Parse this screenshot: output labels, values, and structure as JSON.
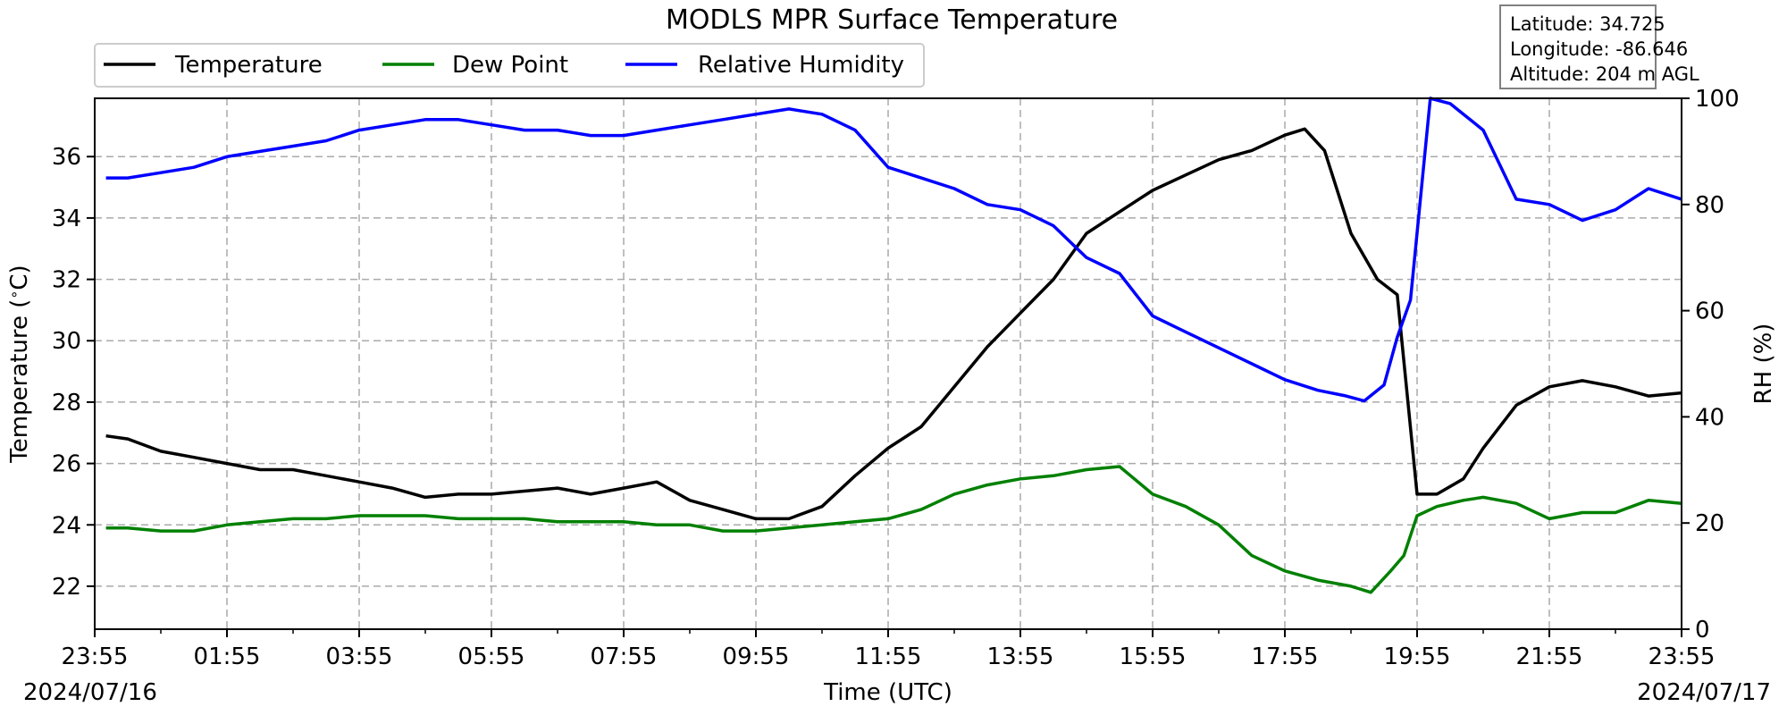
{
  "chart_data": {
    "type": "line",
    "title": "MODLS MPR Surface Temperature",
    "xlabel": "Time (UTC)",
    "ylabel_left": "Temperature ($^\\circ$C)",
    "ylabel_right": "RH (%)",
    "x_ticks": [
      "23:55",
      "01:55",
      "03:55",
      "05:55",
      "07:55",
      "09:55",
      "11:55",
      "13:55",
      "15:55",
      "17:55",
      "19:55",
      "21:55",
      "23:55"
    ],
    "start_date": "2024/07/16",
    "end_date": "2024/07/17",
    "xlim_hours": [
      0,
      24
    ],
    "ylim_left": [
      20.6,
      37.9
    ],
    "ylim_right": [
      0,
      100
    ],
    "yticks_left": [
      22,
      24,
      26,
      28,
      30,
      32,
      34,
      36
    ],
    "yticks_right": [
      0,
      20,
      40,
      60,
      80,
      100
    ],
    "grid": true,
    "legend_position": "top-left",
    "series": [
      {
        "name": "Temperature",
        "axis": "left",
        "color": "#000000",
        "x": [
          0.17,
          0.5,
          1,
          1.5,
          2,
          2.5,
          3,
          3.5,
          4,
          4.5,
          5,
          5.5,
          6,
          6.5,
          7,
          7.5,
          8,
          8.5,
          9,
          9.5,
          10,
          10.5,
          11,
          11.5,
          12,
          12.5,
          13,
          13.5,
          14,
          14.5,
          15,
          15.5,
          16,
          16.5,
          17,
          17.5,
          18,
          18.3,
          18.6,
          19,
          19.4,
          19.7,
          20,
          20.3,
          20.7,
          21,
          21.5,
          22,
          22.5,
          23,
          23.5,
          24
        ],
        "y": [
          26.9,
          26.8,
          26.4,
          26.2,
          26.0,
          25.8,
          25.8,
          25.6,
          25.4,
          25.2,
          24.9,
          25.0,
          25.0,
          25.1,
          25.2,
          25.0,
          25.2,
          25.4,
          24.8,
          24.5,
          24.2,
          24.2,
          24.6,
          25.6,
          26.5,
          27.2,
          28.5,
          29.8,
          30.9,
          32.0,
          33.5,
          34.2,
          34.9,
          35.4,
          35.9,
          36.2,
          36.7,
          36.9,
          36.2,
          33.5,
          32.0,
          31.5,
          25.0,
          25.0,
          25.5,
          26.5,
          27.9,
          28.5,
          28.7,
          28.5,
          28.2,
          28.3
        ]
      },
      {
        "name": "Dew Point",
        "axis": "left",
        "color": "#008000",
        "x": [
          0.17,
          0.5,
          1,
          1.5,
          2,
          2.5,
          3,
          3.5,
          4,
          4.5,
          5,
          5.5,
          6,
          6.5,
          7,
          7.5,
          8,
          8.5,
          9,
          9.5,
          10,
          10.5,
          11,
          11.5,
          12,
          12.5,
          13,
          13.5,
          14,
          14.5,
          15,
          15.5,
          16,
          16.5,
          17,
          17.5,
          18,
          18.5,
          19,
          19.3,
          19.6,
          19.8,
          20,
          20.3,
          20.7,
          21,
          21.5,
          22,
          22.5,
          23,
          23.5,
          24
        ],
        "y": [
          23.9,
          23.9,
          23.8,
          23.8,
          24.0,
          24.1,
          24.2,
          24.2,
          24.3,
          24.3,
          24.3,
          24.2,
          24.2,
          24.2,
          24.1,
          24.1,
          24.1,
          24.0,
          24.0,
          23.8,
          23.8,
          23.9,
          24.0,
          24.1,
          24.2,
          24.5,
          25.0,
          25.3,
          25.5,
          25.6,
          25.8,
          25.9,
          25.0,
          24.6,
          24.0,
          23.0,
          22.5,
          22.2,
          22.0,
          21.8,
          22.5,
          23.0,
          24.3,
          24.6,
          24.8,
          24.9,
          24.7,
          24.2,
          24.4,
          24.4,
          24.8,
          24.7
        ]
      },
      {
        "name": "Relative Humidity",
        "axis": "right",
        "color": "#0000ff",
        "x": [
          0.17,
          0.5,
          1,
          1.5,
          2,
          2.5,
          3,
          3.5,
          4,
          4.5,
          5,
          5.5,
          6,
          6.5,
          7,
          7.5,
          8,
          8.5,
          9,
          9.5,
          10,
          10.5,
          11,
          11.5,
          12,
          12.5,
          13,
          13.5,
          14,
          14.5,
          15,
          15.5,
          16,
          16.5,
          17,
          17.5,
          18,
          18.5,
          18.9,
          19.2,
          19.5,
          19.7,
          19.9,
          20.2,
          20.5,
          21,
          21.5,
          22,
          22.5,
          23,
          23.5,
          24
        ],
        "y": [
          85,
          85,
          86,
          87,
          89,
          90,
          91,
          92,
          94,
          95,
          96,
          96,
          95,
          94,
          94,
          93,
          93,
          94,
          95,
          96,
          97,
          98,
          97,
          94,
          87,
          85,
          83,
          80,
          79,
          76,
          70,
          67,
          59,
          56,
          53,
          50,
          47,
          45,
          44,
          43,
          46,
          55,
          62,
          100,
          99,
          94,
          81,
          80,
          77,
          79,
          83,
          81
        ]
      }
    ]
  },
  "info": {
    "latitude": "Latitude: 34.725",
    "longitude": "Longitude: -86.646",
    "altitude": "Altitude: 204 m AGL"
  }
}
